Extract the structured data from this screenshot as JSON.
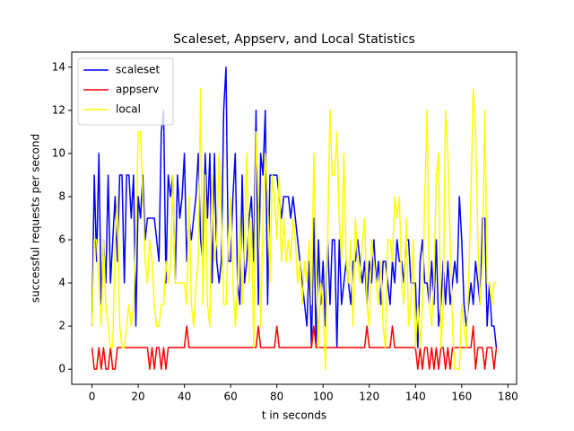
{
  "chart_data": {
    "type": "line",
    "title": "Scaleset, Appserv, and Local Statistics",
    "x_label": "t in seconds",
    "y_label": "successful requests per second",
    "x": [
      0,
      1,
      2,
      3,
      4,
      5,
      6,
      7,
      8,
      9,
      10,
      11,
      12,
      13,
      14,
      15,
      16,
      17,
      18,
      19,
      20,
      21,
      22,
      23,
      24,
      25,
      26,
      27,
      28,
      29,
      30,
      31,
      32,
      33,
      34,
      35,
      36,
      37,
      38,
      39,
      40,
      41,
      42,
      43,
      44,
      45,
      46,
      47,
      48,
      49,
      50,
      51,
      52,
      53,
      54,
      55,
      56,
      57,
      58,
      59,
      60,
      61,
      62,
      63,
      64,
      65,
      66,
      67,
      68,
      69,
      70,
      71,
      72,
      73,
      74,
      75,
      76,
      77,
      78,
      79,
      80,
      81,
      82,
      83,
      84,
      85,
      86,
      87,
      88,
      89,
      90,
      91,
      92,
      93,
      94,
      95,
      96,
      97,
      98,
      99,
      100,
      101,
      102,
      103,
      104,
      105,
      106,
      107,
      108,
      109,
      110,
      111,
      112,
      113,
      114,
      115,
      116,
      117,
      118,
      119,
      120,
      121,
      122,
      123,
      124,
      125,
      126,
      127,
      128,
      129,
      130,
      131,
      132,
      133,
      134,
      135,
      136,
      137,
      138,
      139,
      140,
      141,
      142,
      143,
      144,
      145,
      146,
      147,
      148,
      149,
      150,
      151,
      152,
      153,
      154,
      155,
      156,
      157,
      158,
      159,
      160,
      161,
      162,
      163,
      164,
      165,
      166,
      167,
      168,
      169,
      170,
      171,
      172,
      173,
      174,
      175
    ],
    "series": [
      {
        "name": "scaleset",
        "color": "#0000ff",
        "values": [
          2,
          9,
          5,
          10,
          3,
          6,
          4,
          9,
          4,
          6,
          8,
          5,
          9,
          9,
          4,
          9,
          9,
          7,
          9,
          2,
          8,
          7,
          9,
          6,
          7,
          7,
          7,
          7,
          6,
          5,
          11,
          12,
          4,
          9,
          8,
          9,
          4,
          9,
          7,
          8,
          10,
          5,
          7,
          6,
          7,
          8,
          10,
          6,
          5,
          10,
          7,
          10,
          4,
          10,
          5,
          4,
          5,
          12,
          14,
          5,
          5,
          8,
          10,
          4,
          3,
          9,
          4,
          5,
          7,
          8,
          5,
          12,
          3,
          10,
          9,
          12,
          3,
          9,
          9,
          9,
          9,
          8,
          7,
          8,
          8,
          8,
          7,
          8,
          7,
          6,
          5,
          4,
          3,
          2,
          5,
          1,
          7,
          1,
          6,
          3,
          5,
          2,
          6,
          3,
          6,
          6,
          1,
          6,
          3,
          4,
          5,
          4,
          3,
          5,
          5,
          6,
          5,
          4,
          5,
          3,
          5,
          4,
          6,
          4,
          5,
          3,
          5,
          5,
          4,
          3,
          5,
          4,
          6,
          5,
          5,
          4,
          6,
          6,
          4,
          4,
          4,
          1,
          5,
          6,
          4,
          4,
          3,
          5,
          3,
          6,
          2,
          3,
          5,
          3,
          5,
          3,
          4,
          5,
          4,
          8,
          6,
          3,
          2,
          3,
          4,
          3,
          5,
          4,
          3,
          7,
          7,
          2,
          4,
          2,
          2,
          1
        ]
      },
      {
        "name": "appserv",
        "color": "#ff0000",
        "values": [
          1,
          0,
          0,
          1,
          0,
          1,
          0,
          0,
          1,
          0,
          0,
          1,
          1,
          1,
          1,
          1,
          1,
          1,
          1,
          1,
          1,
          1,
          1,
          1,
          1,
          0,
          1,
          0,
          1,
          1,
          0,
          1,
          0,
          1,
          1,
          1,
          1,
          1,
          1,
          1,
          1,
          2,
          1,
          1,
          1,
          1,
          1,
          1,
          1,
          1,
          1,
          1,
          1,
          1,
          1,
          1,
          1,
          1,
          1,
          1,
          1,
          1,
          1,
          1,
          1,
          1,
          1,
          1,
          1,
          1,
          1,
          1,
          2,
          1,
          1,
          1,
          1,
          1,
          1,
          1,
          2,
          1,
          1,
          1,
          1,
          1,
          1,
          1,
          1,
          1,
          1,
          1,
          1,
          1,
          1,
          1,
          2,
          1,
          1,
          1,
          1,
          1,
          1,
          1,
          1,
          1,
          1,
          1,
          1,
          1,
          1,
          1,
          1,
          1,
          1,
          1,
          1,
          1,
          1,
          2,
          1,
          1,
          1,
          1,
          1,
          1,
          1,
          1,
          1,
          1,
          2,
          1,
          1,
          1,
          1,
          1,
          1,
          1,
          1,
          1,
          1,
          0,
          1,
          0,
          1,
          1,
          0,
          1,
          0,
          1,
          0,
          1,
          1,
          0,
          1,
          0,
          1,
          1,
          1,
          1,
          1,
          1,
          1,
          1,
          1,
          2,
          0,
          1,
          1,
          1,
          0,
          1,
          1,
          1,
          0,
          1
        ]
      },
      {
        "name": "local",
        "color": "#ffff00",
        "values": [
          2,
          6,
          6,
          4,
          2,
          6,
          3,
          2,
          1,
          1,
          6,
          8,
          2,
          1,
          1,
          2,
          3,
          2,
          3,
          6,
          11,
          11,
          8,
          5,
          4,
          6,
          5,
          3,
          2,
          2,
          3,
          3,
          5,
          4,
          5,
          9,
          4,
          4,
          4,
          4,
          4,
          3,
          8,
          3,
          2,
          4,
          5,
          13,
          3,
          9,
          3,
          2,
          9,
          5,
          6,
          10,
          7,
          3,
          3,
          6,
          8,
          4,
          2,
          4,
          7,
          3,
          6,
          10,
          4,
          7,
          1,
          11,
          8,
          2,
          7,
          10,
          8,
          4,
          9,
          8,
          6,
          9,
          5,
          7,
          5,
          6,
          5,
          7,
          6,
          4,
          5,
          3,
          5,
          4,
          6,
          3,
          10,
          5,
          1,
          4,
          3,
          0,
          6,
          12,
          9,
          9,
          11,
          7,
          5,
          10,
          5,
          4,
          6,
          2,
          7,
          5,
          4,
          6,
          7,
          3,
          2,
          6,
          5,
          4,
          3,
          5,
          2,
          1,
          6,
          6,
          5,
          8,
          7,
          8,
          4,
          3,
          7,
          2,
          3,
          6,
          1,
          3,
          1,
          3,
          8,
          12,
          3,
          2,
          4,
          9,
          10,
          1,
          3,
          12,
          10,
          6,
          2,
          0,
          0,
          0,
          3,
          2,
          1,
          4,
          8,
          13,
          11,
          6,
          3,
          5,
          12,
          4,
          4,
          3,
          4,
          4
        ]
      }
    ],
    "xlim": [
      -8.75,
      183.75
    ],
    "xticks": [
      0,
      20,
      40,
      60,
      80,
      100,
      120,
      140,
      160,
      180
    ],
    "ylim": [
      -0.7,
      14.7
    ],
    "yticks": [
      0,
      2,
      4,
      6,
      8,
      10,
      12,
      14
    ],
    "legend": "upper left",
    "grid": false
  }
}
